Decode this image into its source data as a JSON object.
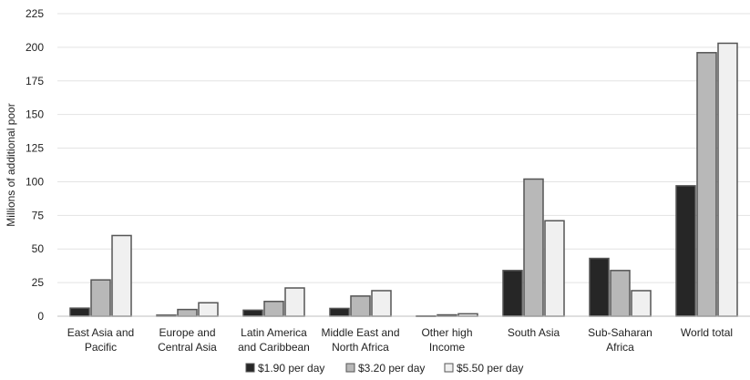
{
  "chart_data": {
    "type": "bar",
    "ylabel": "Millions of additional poor",
    "ylim": [
      0,
      225
    ],
    "yticks": [
      0,
      25,
      50,
      75,
      100,
      125,
      150,
      175,
      200,
      225
    ],
    "grid": true,
    "legend_position": "bottom",
    "categories": [
      [
        "East Asia and",
        "Pacific"
      ],
      [
        "Europe and",
        "Central Asia"
      ],
      [
        "Latin America",
        "and Caribbean"
      ],
      [
        "Middle East and",
        "North Africa"
      ],
      [
        "Other high",
        "Income"
      ],
      [
        "South Asia"
      ],
      [
        "Sub-Saharan",
        "Africa"
      ],
      [
        "World total"
      ]
    ],
    "series": [
      {
        "name": "$1.90 per day",
        "color": "#262626",
        "values": [
          6,
          0.8,
          4.5,
          5.8,
          0.2,
          34,
          43,
          97
        ]
      },
      {
        "name": "$3.20 per day",
        "color": "#b8b8b8",
        "values": [
          27,
          5,
          11,
          15,
          1,
          102,
          34,
          196
        ]
      },
      {
        "name": "$5.50 per day",
        "color": "#f0f0f0",
        "values": [
          60,
          10,
          21,
          19,
          1.8,
          71,
          19,
          203
        ]
      }
    ]
  }
}
